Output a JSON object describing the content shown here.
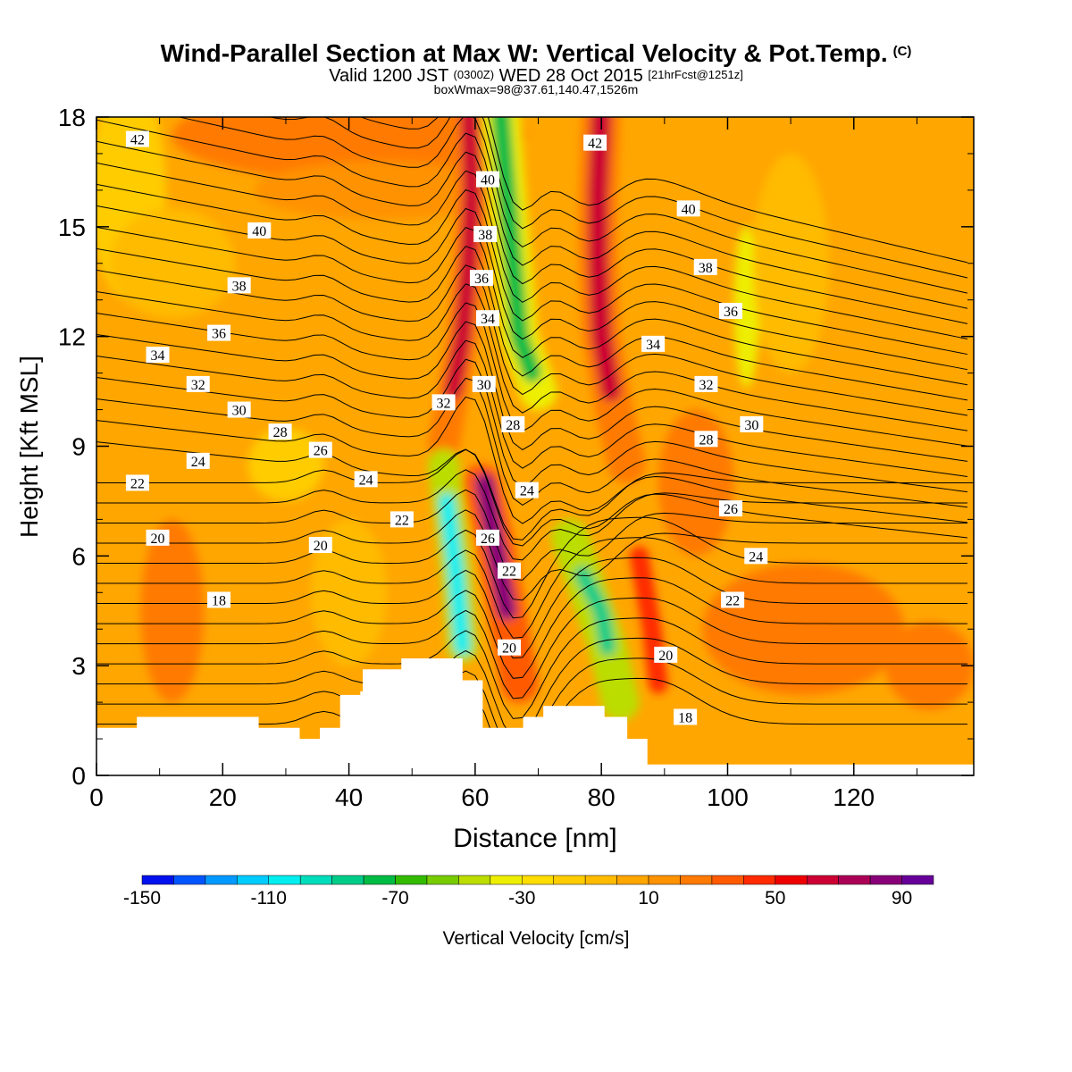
{
  "title": {
    "main": "Wind-Parallel Section at Max W: Vertical Velocity & Pot.Temp.",
    "copyright": "(C)",
    "valid_prefix": "Valid 1200 JST",
    "valid_utc": "(0300Z)",
    "valid_date": "WED 28 Oct 2015",
    "forecast_info": "[21hrFcst@1251z]",
    "box_info": "boxWmax=98@37.61,140.47,1526m"
  },
  "chart_data": {
    "type": "heatmap",
    "xlabel": "Distance [nm]",
    "ylabel": "Height [Kft MSL]",
    "xlim": [
      0,
      139
    ],
    "ylim": [
      0,
      18
    ],
    "x_ticks": [
      "0",
      "20",
      "40",
      "60",
      "80",
      "100",
      "120"
    ],
    "x_tick_values": [
      0,
      20,
      40,
      60,
      80,
      100,
      120
    ],
    "y_ticks": [
      "0",
      "3",
      "6",
      "9",
      "12",
      "15",
      "18"
    ],
    "y_tick_values": [
      0,
      3,
      6,
      9,
      12,
      15,
      18
    ],
    "colorbar": {
      "label": "Vertical Velocity [cm/s]",
      "tick_labels": [
        "-150",
        "-110",
        "-70",
        "-30",
        "10",
        "50",
        "90"
      ],
      "tick_values": [
        -150,
        -110,
        -70,
        -30,
        10,
        50,
        90
      ],
      "min": -150,
      "max": 100,
      "step": 10,
      "colors": [
        "#0011ee",
        "#0055ff",
        "#0099ff",
        "#00ccff",
        "#00eeee",
        "#00ddbb",
        "#00cc88",
        "#00bb44",
        "#33bb00",
        "#77cc00",
        "#bbdd00",
        "#eeee00",
        "#ffdd00",
        "#ffcc00",
        "#ffbb00",
        "#ffa600",
        "#ff9200",
        "#ff7a00",
        "#ff5a00",
        "#ff2a00",
        "#ee0000",
        "#cc0033",
        "#aa0055",
        "#880077",
        "#660099"
      ]
    },
    "terrain": [
      [
        0,
        1.3
      ],
      [
        6.4,
        1.3
      ],
      [
        6.4,
        1.6
      ],
      [
        25.7,
        1.6
      ],
      [
        25.7,
        1.3
      ],
      [
        32.2,
        1.3
      ],
      [
        32.2,
        1.0
      ],
      [
        35.4,
        1.0
      ],
      [
        35.4,
        1.3
      ],
      [
        38.6,
        1.3
      ],
      [
        38.6,
        2.2
      ],
      [
        41.8,
        2.2
      ],
      [
        41.8,
        2.3
      ],
      [
        42.2,
        2.3
      ],
      [
        42.2,
        2.9
      ],
      [
        48.3,
        2.9
      ],
      [
        48.3,
        3.2
      ],
      [
        58.0,
        3.2
      ],
      [
        58.0,
        2.6
      ],
      [
        61.2,
        2.6
      ],
      [
        61.2,
        1.3
      ],
      [
        67.6,
        1.3
      ],
      [
        67.6,
        1.6
      ],
      [
        70.8,
        1.6
      ],
      [
        70.8,
        1.9
      ],
      [
        80.5,
        1.9
      ],
      [
        80.5,
        1.6
      ],
      [
        84.1,
        1.6
      ],
      [
        84.1,
        1.0
      ],
      [
        87.3,
        1.0
      ],
      [
        87.3,
        0.3
      ],
      [
        139,
        0.3
      ]
    ],
    "isentrope_labels": [
      {
        "text": "42",
        "x": 6.5,
        "y": 17.4
      },
      {
        "text": "42",
        "x": 79.0,
        "y": 17.3
      },
      {
        "text": "40",
        "x": 25.8,
        "y": 14.9
      },
      {
        "text": "40",
        "x": 62.0,
        "y": 16.3
      },
      {
        "text": "40",
        "x": 93.8,
        "y": 15.5
      },
      {
        "text": "38",
        "x": 22.6,
        "y": 13.4
      },
      {
        "text": "38",
        "x": 61.6,
        "y": 14.8
      },
      {
        "text": "38",
        "x": 96.5,
        "y": 13.9
      },
      {
        "text": "36",
        "x": 19.4,
        "y": 12.1
      },
      {
        "text": "36",
        "x": 61.0,
        "y": 13.6
      },
      {
        "text": "36",
        "x": 100.5,
        "y": 12.7
      },
      {
        "text": "34",
        "x": 9.7,
        "y": 11.5
      },
      {
        "text": "34",
        "x": 62.0,
        "y": 12.5
      },
      {
        "text": "34",
        "x": 88.2,
        "y": 11.8
      },
      {
        "text": "32",
        "x": 16.1,
        "y": 10.7
      },
      {
        "text": "32",
        "x": 55.0,
        "y": 10.2
      },
      {
        "text": "32",
        "x": 96.6,
        "y": 10.7
      },
      {
        "text": "30",
        "x": 22.6,
        "y": 10.0
      },
      {
        "text": "30",
        "x": 61.4,
        "y": 10.7
      },
      {
        "text": "30",
        "x": 103.8,
        "y": 9.6
      },
      {
        "text": "28",
        "x": 29.1,
        "y": 9.4
      },
      {
        "text": "28",
        "x": 66.0,
        "y": 9.6
      },
      {
        "text": "28",
        "x": 96.6,
        "y": 9.2
      },
      {
        "text": "26",
        "x": 35.5,
        "y": 8.9
      },
      {
        "text": "26",
        "x": 62.0,
        "y": 6.5
      },
      {
        "text": "26",
        "x": 100.5,
        "y": 7.3
      },
      {
        "text": "24",
        "x": 16.1,
        "y": 8.6
      },
      {
        "text": "24",
        "x": 42.7,
        "y": 8.1
      },
      {
        "text": "24",
        "x": 68.2,
        "y": 7.8
      },
      {
        "text": "24",
        "x": 104.5,
        "y": 6.0
      },
      {
        "text": "22",
        "x": 6.5,
        "y": 8.0
      },
      {
        "text": "22",
        "x": 48.4,
        "y": 7.0
      },
      {
        "text": "22",
        "x": 65.4,
        "y": 5.6
      },
      {
        "text": "22",
        "x": 100.8,
        "y": 4.8
      },
      {
        "text": "20",
        "x": 9.7,
        "y": 6.5
      },
      {
        "text": "20",
        "x": 35.5,
        "y": 6.3
      },
      {
        "text": "20",
        "x": 65.4,
        "y": 3.5
      },
      {
        "text": "20",
        "x": 90.2,
        "y": 3.3
      },
      {
        "text": "18",
        "x": 19.4,
        "y": 4.8
      },
      {
        "text": "18",
        "x": 93.3,
        "y": 1.6
      }
    ]
  }
}
